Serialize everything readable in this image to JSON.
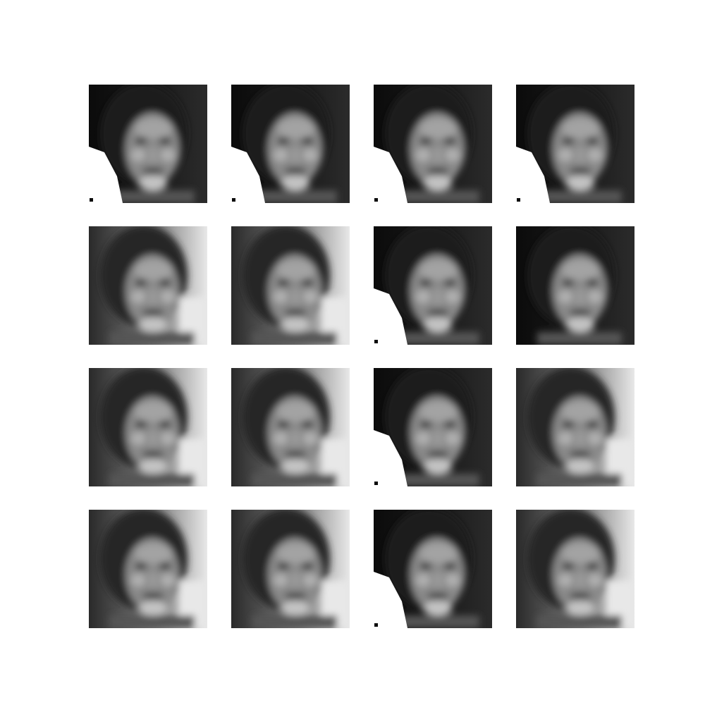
{
  "figure": {
    "kind": "generated-face-samples",
    "rows": 4,
    "columns": 4,
    "palette": {
      "background": "#ffffff",
      "shadow": "#0b0b0b",
      "hair": "#1e1e1e",
      "skin": "#8a8a8a",
      "highlight": "#c4c4c4",
      "light_background": "#e8e8e8"
    },
    "samples": [
      {
        "variant": "dark-with-white-corner"
      },
      {
        "variant": "dark-with-white-corner"
      },
      {
        "variant": "dark-with-white-corner"
      },
      {
        "variant": "dark-with-white-corner"
      },
      {
        "variant": "light-background"
      },
      {
        "variant": "light-background"
      },
      {
        "variant": "dark-with-white-corner"
      },
      {
        "variant": "dark-background"
      },
      {
        "variant": "light-background"
      },
      {
        "variant": "light-background"
      },
      {
        "variant": "dark-with-white-corner"
      },
      {
        "variant": "light-background"
      },
      {
        "variant": "light-background"
      },
      {
        "variant": "light-background"
      },
      {
        "variant": "dark-with-white-corner"
      },
      {
        "variant": "light-background"
      }
    ]
  }
}
